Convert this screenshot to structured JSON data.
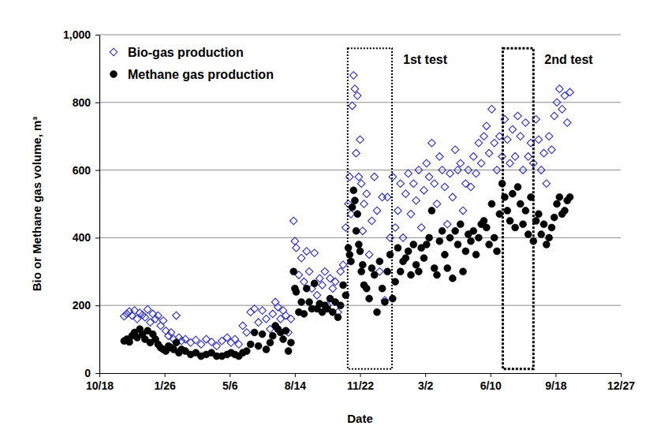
{
  "chart_data": {
    "type": "scatter",
    "x_label": "Date",
    "y_label": "Bio or Methane gas volume, m³",
    "xlim": [
      0,
      800
    ],
    "xticks": [
      {
        "value": 0,
        "label": "10/18"
      },
      {
        "value": 100,
        "label": "1/26"
      },
      {
        "value": 200,
        "label": "5/6"
      },
      {
        "value": 300,
        "label": "8/14"
      },
      {
        "value": 400,
        "label": "11/22"
      },
      {
        "value": 500,
        "label": "3/2"
      },
      {
        "value": 600,
        "label": "6/10"
      },
      {
        "value": 700,
        "label": "9/18"
      },
      {
        "value": 800,
        "label": "12/27"
      }
    ],
    "ylim": [
      0,
      1000
    ],
    "yticks": [
      0,
      200,
      400,
      600,
      800,
      {
        "value": 1000,
        "label": "1,000"
      }
    ],
    "grid": true,
    "legend": "top-left",
    "x": [
      38,
      42,
      46,
      50,
      54,
      58,
      62,
      66,
      70,
      74,
      78,
      82,
      86,
      90,
      94,
      98,
      102,
      106,
      110,
      114,
      118,
      122,
      126,
      132,
      140,
      148,
      156,
      164,
      172,
      180,
      188,
      196,
      202,
      208,
      214,
      220,
      226,
      232,
      238,
      244,
      250,
      256,
      262,
      266,
      270,
      274,
      278,
      282,
      286,
      290,
      294,
      298,
      300,
      302,
      306,
      310,
      314,
      318,
      322,
      326,
      330,
      334,
      338,
      342,
      346,
      350,
      354,
      358,
      362,
      366,
      370,
      374,
      378,
      382,
      384,
      386,
      388,
      390,
      392,
      394,
      396,
      398,
      400,
      402,
      404,
      406,
      410,
      414,
      418,
      422,
      426,
      430,
      434,
      438,
      442,
      446,
      450,
      454,
      458,
      462,
      466,
      470,
      474,
      478,
      482,
      486,
      490,
      494,
      498,
      502,
      506,
      510,
      514,
      518,
      522,
      526,
      530,
      534,
      538,
      542,
      546,
      550,
      554,
      558,
      562,
      566,
      570,
      574,
      578,
      582,
      586,
      590,
      594,
      598,
      602,
      606,
      610,
      614,
      618,
      622,
      626,
      630,
      634,
      638,
      642,
      646,
      650,
      654,
      658,
      662,
      666,
      670,
      674,
      678,
      682,
      686,
      690,
      694,
      698,
      702,
      706,
      710,
      714,
      718,
      722
    ],
    "series": [
      {
        "name": "Bio-gas production",
        "color": "#2a2ad0",
        "marker": "diamond",
        "values": [
          168,
          175,
          182,
          170,
          185,
          160,
          178,
          172,
          165,
          188,
          150,
          175,
          160,
          170,
          140,
          155,
          125,
          110,
          120,
          100,
          170,
          105,
          95,
          100,
          90,
          98,
          85,
          100,
          92,
          80,
          95,
          105,
          90,
          100,
          85,
          140,
          120,
          180,
          190,
          150,
          185,
          160,
          130,
          175,
          210,
          195,
          160,
          185,
          170,
          120,
          160,
          450,
          390,
          370,
          290,
          340,
          270,
          360,
          300,
          250,
          355,
          230,
          280,
          260,
          300,
          200,
          280,
          250,
          270,
          180,
          300,
          320,
          430,
          500,
          580,
          470,
          790,
          880,
          840,
          650,
          820,
          580,
          690,
          560,
          420,
          500,
          530,
          350,
          450,
          580,
          480,
          300,
          520,
          215,
          520,
          400,
          580,
          430,
          480,
          560,
          400,
          530,
          590,
          470,
          560,
          510,
          600,
          430,
          540,
          620,
          580,
          680,
          560,
          500,
          640,
          600,
          550,
          440,
          590,
          520,
          660,
          600,
          620,
          480,
          560,
          600,
          550,
          640,
          590,
          680,
          620,
          700,
          730,
          650,
          780,
          680,
          600,
          700,
          640,
          750,
          690,
          620,
          720,
          640,
          760,
          700,
          600,
          740,
          640,
          680,
          620,
          750,
          690,
          600,
          650,
          560,
          700,
          660,
          760,
          800,
          840,
          780,
          820,
          740,
          830
        ]
      },
      {
        "name": "Methane gas production",
        "color": "#000000",
        "marker": "circle",
        "values": [
          95,
          100,
          92,
          110,
          120,
          105,
          130,
          115,
          100,
          125,
          90,
          115,
          100,
          85,
          75,
          70,
          65,
          80,
          75,
          70,
          90,
          60,
          70,
          65,
          55,
          60,
          50,
          55,
          60,
          50,
          50,
          55,
          60,
          55,
          50,
          60,
          65,
          85,
          120,
          80,
          115,
          70,
          90,
          110,
          140,
          130,
          120,
          100,
          125,
          65,
          90,
          300,
          250,
          240,
          180,
          210,
          175,
          250,
          210,
          190,
          265,
          190,
          205,
          180,
          200,
          190,
          220,
          180,
          210,
          165,
          200,
          260,
          230,
          370,
          350,
          330,
          490,
          540,
          510,
          420,
          470,
          380,
          360,
          300,
          320,
          260,
          250,
          220,
          310,
          290,
          180,
          330,
          250,
          210,
          300,
          350,
          220,
          270,
          370,
          300,
          330,
          340,
          360,
          290,
          380,
          320,
          300,
          370,
          340,
          380,
          400,
          480,
          310,
          290,
          390,
          420,
          350,
          310,
          400,
          280,
          420,
          380,
          440,
          300,
          360,
          410,
          390,
          420,
          350,
          400,
          440,
          450,
          430,
          380,
          500,
          400,
          360,
          470,
          560,
          520,
          480,
          450,
          530,
          430,
          550,
          500,
          440,
          480,
          410,
          520,
          390,
          450,
          470,
          410,
          440,
          380,
          400,
          430,
          460,
          500,
          520,
          470,
          480,
          510,
          520
        ]
      }
    ],
    "annotations": [
      {
        "text": "1st test",
        "x_range": [
          381,
          449
        ],
        "y_range": [
          12,
          960
        ],
        "line_style": "dotted"
      },
      {
        "text": "2nd test",
        "x_range": [
          619,
          666
        ],
        "y_range": [
          12,
          960
        ],
        "line_style": "dashed"
      }
    ]
  }
}
